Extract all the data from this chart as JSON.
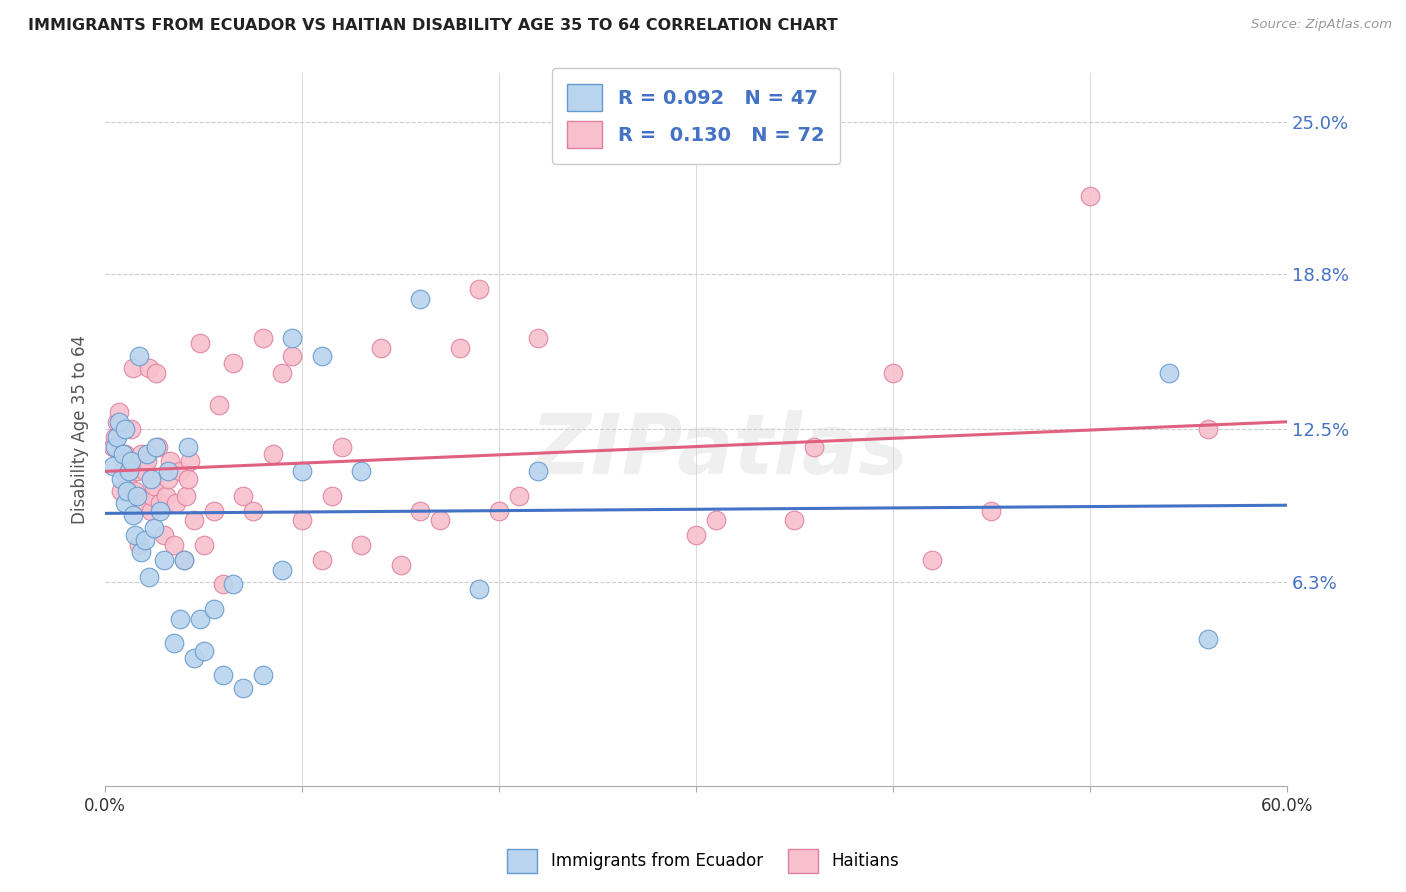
{
  "title": "IMMIGRANTS FROM ECUADOR VS HAITIAN DISABILITY AGE 35 TO 64 CORRELATION CHART",
  "source": "Source: ZipAtlas.com",
  "ylabel": "Disability Age 35 to 64",
  "xlim": [
    0.0,
    0.6
  ],
  "ylim": [
    -0.02,
    0.27
  ],
  "ytick_vals_right": [
    0.063,
    0.125,
    0.188,
    0.25
  ],
  "ytick_labels_right": [
    "6.3%",
    "12.5%",
    "18.8%",
    "25.0%"
  ],
  "background_color": "#ffffff",
  "grid_color": "#cccccc",
  "ecuador_color": "#b8d4ee",
  "ecuador_edge_color": "#6699cc",
  "haitian_color": "#f7c0cc",
  "haitian_edge_color": "#e080a0",
  "ecuador_line_color": "#4472c4",
  "haitian_line_color": "#e06080",
  "watermark": "ZIPatlas",
  "legend_R_ecuador": "0.092",
  "legend_N_ecuador": "47",
  "legend_R_haitian": "0.130",
  "legend_N_haitian": "72",
  "legend_label_ecuador": "Immigrants from Ecuador",
  "legend_label_haitian": "Haitians",
  "ecuador_x": [
    0.004,
    0.005,
    0.006,
    0.007,
    0.008,
    0.009,
    0.01,
    0.01,
    0.011,
    0.012,
    0.013,
    0.014,
    0.015,
    0.016,
    0.017,
    0.018,
    0.02,
    0.021,
    0.022,
    0.023,
    0.025,
    0.026,
    0.028,
    0.03,
    0.032,
    0.035,
    0.038,
    0.04,
    0.042,
    0.045,
    0.048,
    0.05,
    0.055,
    0.06,
    0.065,
    0.07,
    0.08,
    0.09,
    0.095,
    0.1,
    0.11,
    0.13,
    0.16,
    0.19,
    0.22,
    0.54,
    0.56
  ],
  "ecuador_y": [
    0.11,
    0.118,
    0.122,
    0.128,
    0.105,
    0.115,
    0.095,
    0.125,
    0.1,
    0.108,
    0.112,
    0.09,
    0.082,
    0.098,
    0.155,
    0.075,
    0.08,
    0.115,
    0.065,
    0.105,
    0.085,
    0.118,
    0.092,
    0.072,
    0.108,
    0.038,
    0.048,
    0.072,
    0.118,
    0.032,
    0.048,
    0.035,
    0.052,
    0.025,
    0.062,
    0.02,
    0.025,
    0.068,
    0.162,
    0.108,
    0.155,
    0.108,
    0.178,
    0.06,
    0.108,
    0.148,
    0.04
  ],
  "haitian_x": [
    0.004,
    0.005,
    0.006,
    0.007,
    0.008,
    0.009,
    0.01,
    0.011,
    0.012,
    0.013,
    0.014,
    0.015,
    0.016,
    0.017,
    0.018,
    0.019,
    0.02,
    0.021,
    0.022,
    0.023,
    0.024,
    0.025,
    0.026,
    0.027,
    0.028,
    0.03,
    0.031,
    0.032,
    0.033,
    0.035,
    0.036,
    0.038,
    0.04,
    0.041,
    0.042,
    0.043,
    0.045,
    0.048,
    0.05,
    0.055,
    0.058,
    0.06,
    0.065,
    0.07,
    0.075,
    0.08,
    0.085,
    0.09,
    0.095,
    0.1,
    0.11,
    0.115,
    0.12,
    0.13,
    0.14,
    0.15,
    0.16,
    0.17,
    0.18,
    0.19,
    0.2,
    0.21,
    0.22,
    0.3,
    0.31,
    0.35,
    0.36,
    0.4,
    0.42,
    0.45,
    0.5,
    0.56
  ],
  "haitian_y": [
    0.118,
    0.122,
    0.128,
    0.132,
    0.1,
    0.108,
    0.115,
    0.105,
    0.112,
    0.125,
    0.15,
    0.1,
    0.108,
    0.078,
    0.115,
    0.095,
    0.108,
    0.112,
    0.15,
    0.092,
    0.098,
    0.102,
    0.148,
    0.118,
    0.095,
    0.082,
    0.098,
    0.105,
    0.112,
    0.078,
    0.095,
    0.108,
    0.072,
    0.098,
    0.105,
    0.112,
    0.088,
    0.16,
    0.078,
    0.092,
    0.135,
    0.062,
    0.152,
    0.098,
    0.092,
    0.162,
    0.115,
    0.148,
    0.155,
    0.088,
    0.072,
    0.098,
    0.118,
    0.078,
    0.158,
    0.07,
    0.092,
    0.088,
    0.158,
    0.182,
    0.092,
    0.098,
    0.162,
    0.082,
    0.088,
    0.088,
    0.118,
    0.148,
    0.072,
    0.092,
    0.22,
    0.125
  ]
}
